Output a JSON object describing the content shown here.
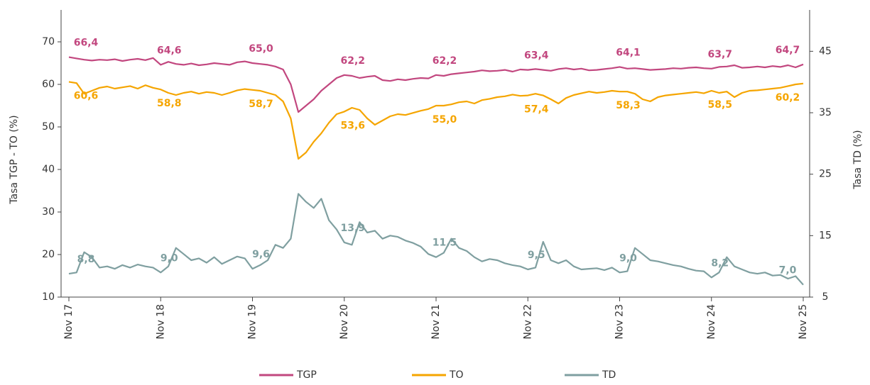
{
  "chart_data": {
    "type": "line",
    "categories": [
      "Nov 17",
      null,
      null,
      null,
      null,
      null,
      null,
      null,
      null,
      null,
      null,
      null,
      "Nov 18",
      null,
      null,
      null,
      null,
      null,
      null,
      null,
      null,
      null,
      null,
      null,
      "Nov 19",
      null,
      null,
      null,
      null,
      null,
      null,
      null,
      null,
      null,
      null,
      null,
      "Nov 20",
      null,
      null,
      null,
      null,
      null,
      null,
      null,
      null,
      null,
      null,
      null,
      "Nov 21",
      null,
      null,
      null,
      null,
      null,
      null,
      null,
      null,
      null,
      null,
      null,
      "Nov 22",
      null,
      null,
      null,
      null,
      null,
      null,
      null,
      null,
      null,
      null,
      null,
      "Nov 23",
      null,
      null,
      null,
      null,
      null,
      null,
      null,
      null,
      null,
      null,
      null,
      "Nov 24",
      null,
      null,
      null,
      null,
      null,
      null,
      null,
      null,
      null,
      null,
      null,
      "Nov 25"
    ],
    "ylabel": "Tasa TGP - TO (%)",
    "y2label": "Tasa TD (%)",
    "ylim": [
      10,
      75
    ],
    "yticks": [
      10,
      20,
      30,
      40,
      50,
      60,
      70
    ],
    "y2lim": [
      5,
      50
    ],
    "y2ticks": [
      5,
      15,
      25,
      35,
      45
    ],
    "legend": "bottom",
    "series": [
      {
        "name": "TGP",
        "color": "#c2477f",
        "label_side": "above",
        "values": [
          66.4,
          66.1,
          65.8,
          65.6,
          65.8,
          65.7,
          65.9,
          65.5,
          65.8,
          66.0,
          65.7,
          66.2,
          64.6,
          65.3,
          64.8,
          64.6,
          64.9,
          64.5,
          64.7,
          65.0,
          64.8,
          64.6,
          65.2,
          65.4,
          65.0,
          64.8,
          64.6,
          64.2,
          63.5,
          60.0,
          53.5,
          55.0,
          56.5,
          58.5,
          60.0,
          61.5,
          62.2,
          62.0,
          61.5,
          61.8,
          62.0,
          61.0,
          60.8,
          61.2,
          61.0,
          61.3,
          61.5,
          61.4,
          62.2,
          62.0,
          62.4,
          62.6,
          62.8,
          63.0,
          63.3,
          63.1,
          63.2,
          63.4,
          63.0,
          63.5,
          63.4,
          63.6,
          63.4,
          63.2,
          63.6,
          63.8,
          63.5,
          63.7,
          63.3,
          63.4,
          63.6,
          63.8,
          64.1,
          63.7,
          63.8,
          63.6,
          63.4,
          63.5,
          63.6,
          63.8,
          63.7,
          63.9,
          64.0,
          63.8,
          63.7,
          64.1,
          64.2,
          64.5,
          63.9,
          64.0,
          64.2,
          64.0,
          64.3,
          64.1,
          64.5,
          64.0,
          64.7
        ],
        "value_labels": [
          "66,4",
          null,
          null,
          null,
          null,
          null,
          null,
          null,
          null,
          null,
          null,
          null,
          "64,6",
          null,
          null,
          null,
          null,
          null,
          null,
          null,
          null,
          null,
          null,
          null,
          "65,0",
          null,
          null,
          null,
          null,
          null,
          null,
          null,
          null,
          null,
          null,
          null,
          "62,2",
          null,
          null,
          null,
          null,
          null,
          null,
          null,
          null,
          null,
          null,
          null,
          "62,2",
          null,
          null,
          null,
          null,
          null,
          null,
          null,
          null,
          null,
          null,
          null,
          "63,4",
          null,
          null,
          null,
          null,
          null,
          null,
          null,
          null,
          null,
          null,
          null,
          "64,1",
          null,
          null,
          null,
          null,
          null,
          null,
          null,
          null,
          null,
          null,
          null,
          "63,7",
          null,
          null,
          null,
          null,
          null,
          null,
          null,
          null,
          null,
          null,
          null,
          "64,7"
        ]
      },
      {
        "name": "TO",
        "color": "#f5a500",
        "label_side": "below",
        "values": [
          60.6,
          60.3,
          57.8,
          58.5,
          59.2,
          59.5,
          59.0,
          59.3,
          59.6,
          59.0,
          59.8,
          59.2,
          58.8,
          58.0,
          57.5,
          58.0,
          58.3,
          57.8,
          58.2,
          58.0,
          57.5,
          58.0,
          58.6,
          58.9,
          58.7,
          58.5,
          58.0,
          57.5,
          56.0,
          52.0,
          42.5,
          44.0,
          46.5,
          48.5,
          51.0,
          53.0,
          53.6,
          54.5,
          54.0,
          52.0,
          50.5,
          51.5,
          52.5,
          53.0,
          52.8,
          53.3,
          53.8,
          54.2,
          55.0,
          55.0,
          55.3,
          55.8,
          56.0,
          55.5,
          56.3,
          56.6,
          57.0,
          57.2,
          57.6,
          57.3,
          57.4,
          57.8,
          57.4,
          56.5,
          55.5,
          56.8,
          57.5,
          57.9,
          58.3,
          58.0,
          58.2,
          58.5,
          58.3,
          58.3,
          57.8,
          56.5,
          56.0,
          57.0,
          57.4,
          57.6,
          57.8,
          58.0,
          58.2,
          57.9,
          58.5,
          58.0,
          58.3,
          57.0,
          58.0,
          58.5,
          58.6,
          58.8,
          59.0,
          59.2,
          59.6,
          60.0,
          60.2
        ],
        "value_labels": [
          "60,6",
          null,
          null,
          null,
          null,
          null,
          null,
          null,
          null,
          null,
          null,
          null,
          "58,8",
          null,
          null,
          null,
          null,
          null,
          null,
          null,
          null,
          null,
          null,
          null,
          "58,7",
          null,
          null,
          null,
          null,
          null,
          null,
          null,
          null,
          null,
          null,
          null,
          "53,6",
          null,
          null,
          null,
          null,
          null,
          null,
          null,
          null,
          null,
          null,
          null,
          "55,0",
          null,
          null,
          null,
          null,
          null,
          null,
          null,
          null,
          null,
          null,
          null,
          "57,4",
          null,
          null,
          null,
          null,
          null,
          null,
          null,
          null,
          null,
          null,
          null,
          "58,3",
          null,
          null,
          null,
          null,
          null,
          null,
          null,
          null,
          null,
          null,
          null,
          "58,5",
          null,
          null,
          null,
          null,
          null,
          null,
          null,
          null,
          null,
          null,
          null,
          "60,2"
        ]
      },
      {
        "name": "TD",
        "color": "#7f9fa0",
        "axis": "y2",
        "label_side": "above",
        "values": [
          8.8,
          9.0,
          12.3,
          11.5,
          9.8,
          10.0,
          9.6,
          10.2,
          9.8,
          10.3,
          10.0,
          9.8,
          9.0,
          10.0,
          13.0,
          12.0,
          11.0,
          11.3,
          10.6,
          11.5,
          10.4,
          11.0,
          11.6,
          11.3,
          9.6,
          10.2,
          11.0,
          13.5,
          13.0,
          14.5,
          21.8,
          20.5,
          19.5,
          21.0,
          17.5,
          16.0,
          13.9,
          13.5,
          17.2,
          15.5,
          15.8,
          14.5,
          15.0,
          14.8,
          14.2,
          13.8,
          13.2,
          12.0,
          11.5,
          12.2,
          14.5,
          13.0,
          12.5,
          11.5,
          10.8,
          11.2,
          11.0,
          10.5,
          10.2,
          10.0,
          9.5,
          9.8,
          14.0,
          11.0,
          10.5,
          11.0,
          10.0,
          9.5,
          9.6,
          9.7,
          9.4,
          9.8,
          9.0,
          9.2,
          13.0,
          12.0,
          11.0,
          10.8,
          10.5,
          10.2,
          10.0,
          9.6,
          9.3,
          9.2,
          8.2,
          9.0,
          11.5,
          10.0,
          9.5,
          9.0,
          8.8,
          9.0,
          8.5,
          8.6,
          8.0,
          8.4,
          7.0
        ],
        "value_labels": [
          "8,8",
          null,
          null,
          null,
          null,
          null,
          null,
          null,
          null,
          null,
          null,
          null,
          "9,0",
          null,
          null,
          null,
          null,
          null,
          null,
          null,
          null,
          null,
          null,
          null,
          "9,6",
          null,
          null,
          null,
          null,
          null,
          null,
          null,
          null,
          null,
          null,
          null,
          "13,9",
          null,
          null,
          null,
          null,
          null,
          null,
          null,
          null,
          null,
          null,
          null,
          "11,5",
          null,
          null,
          null,
          null,
          null,
          null,
          null,
          null,
          null,
          null,
          null,
          "9,5",
          null,
          null,
          null,
          null,
          null,
          null,
          null,
          null,
          null,
          null,
          null,
          "9,0",
          null,
          null,
          null,
          null,
          null,
          null,
          null,
          null,
          null,
          null,
          null,
          "8,2",
          null,
          null,
          null,
          null,
          null,
          null,
          null,
          null,
          null,
          null,
          null,
          "7,0"
        ]
      }
    ]
  }
}
